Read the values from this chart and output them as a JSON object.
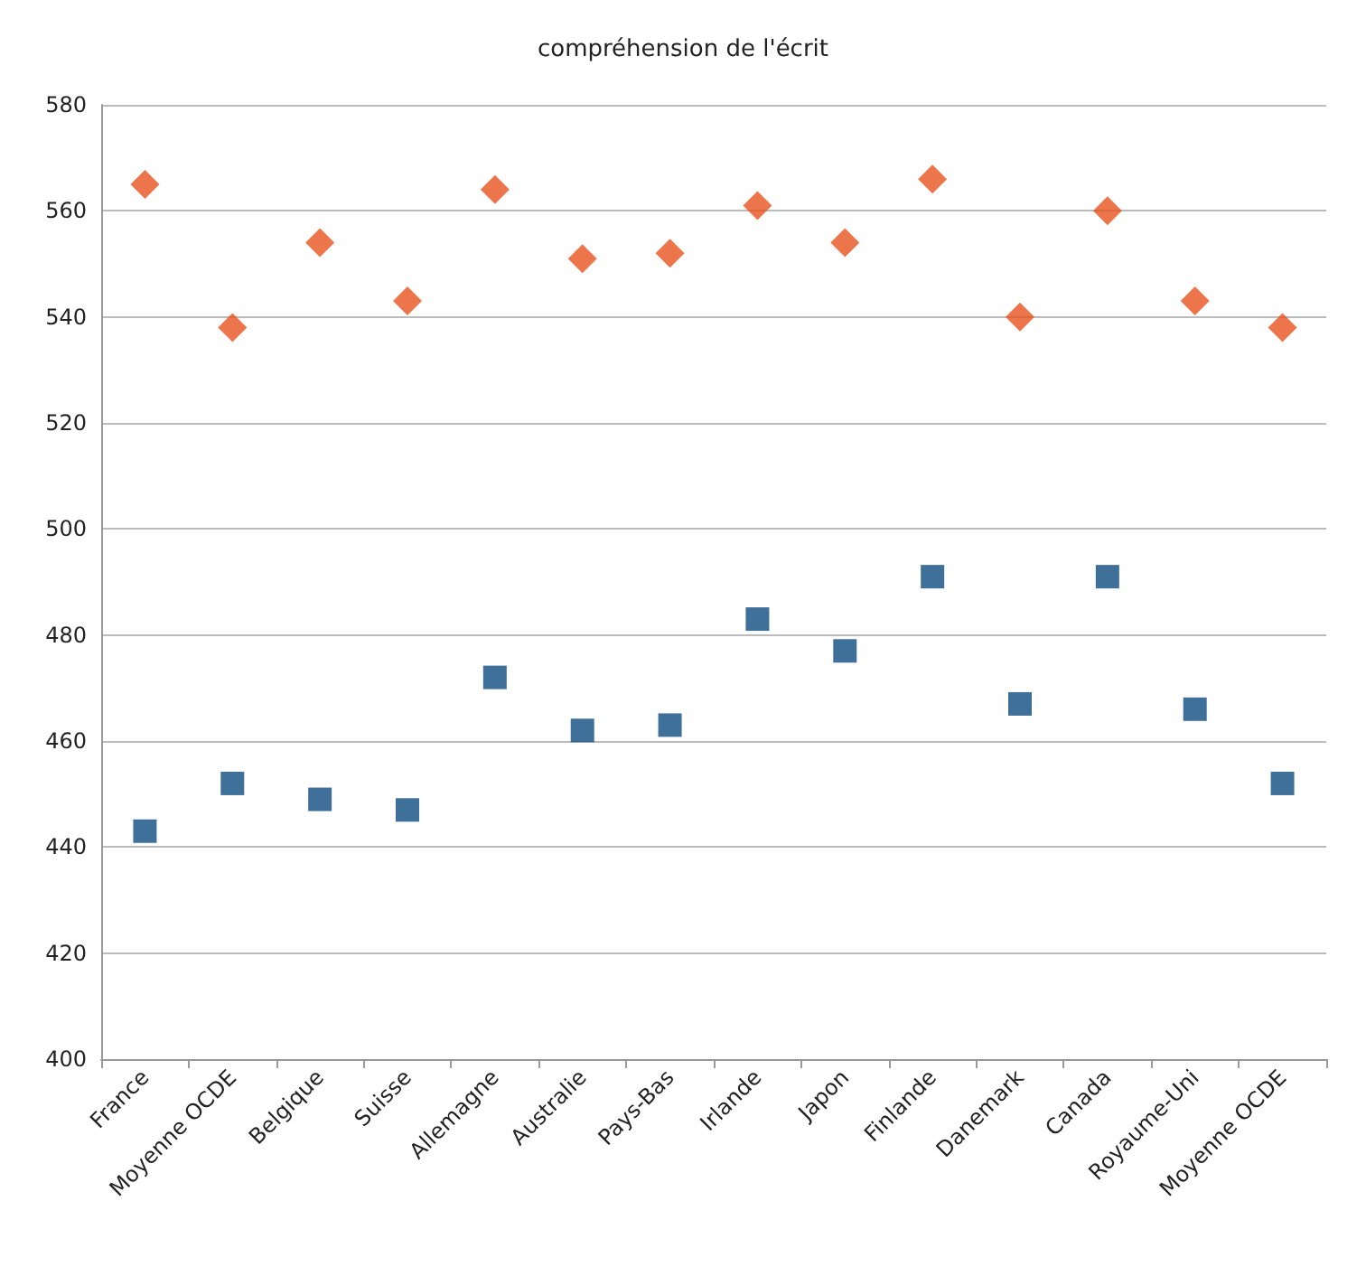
{
  "chart_data": {
    "type": "scatter",
    "title": "compréhension de l'écrit",
    "categories": [
      "France",
      "Moyenne OCDE",
      "Belgique",
      "Suisse",
      "Allemagne",
      "Australie",
      "Pays-Bas",
      "Irlande",
      "Japon",
      "Finlande",
      "Danemark",
      "Canada",
      "Royaume-Uni",
      "Moyenne OCDE"
    ],
    "series": [
      {
        "color": "#e8531e",
        "marker": "diamond",
        "values": [
          565,
          538,
          554,
          543,
          564,
          551,
          552,
          561,
          554,
          566,
          540,
          560,
          543,
          538
        ]
      },
      {
        "color": "#0f4c81",
        "marker": "square",
        "values": [
          443,
          452,
          449,
          447,
          472,
          462,
          463,
          483,
          477,
          491,
          467,
          491,
          466,
          452
        ]
      }
    ],
    "ylim": [
      400,
      580
    ],
    "yticks": [
      400,
      420,
      440,
      460,
      480,
      500,
      520,
      540,
      560,
      580
    ],
    "grid": "y"
  }
}
